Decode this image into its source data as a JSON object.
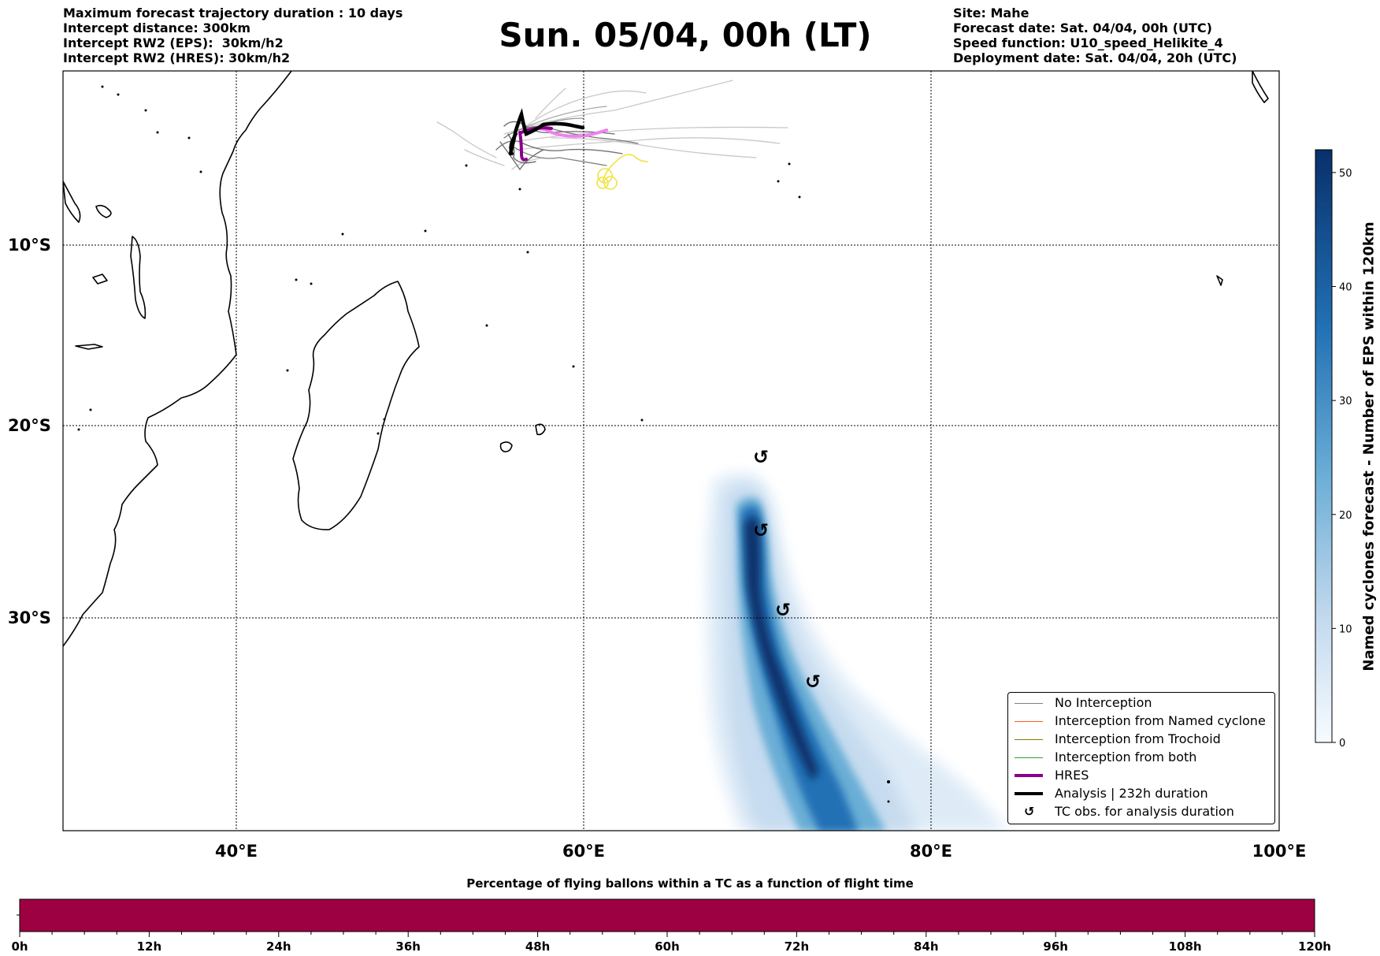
{
  "header_left": [
    "Maximum forecast trajectory duration : 10 days",
    "Intercept distance: 300km",
    "Intercept RW2 (EPS):  30km/h2",
    "Intercept RW2 (HRES): 30km/h2"
  ],
  "header_right": [
    "Site: Mahe",
    "Forecast date: Sat. 04/04, 00h (UTC)",
    "Speed function: U10_speed_Helikite_4",
    "Deployment date: Sat. 04/04, 20h (UTC)"
  ],
  "title": "Sun. 05/04, 00h (LT)",
  "map": {
    "lon_ticks": [
      "40°E",
      "60°E",
      "80°E",
      "100°E"
    ],
    "lat_ticks": [
      "10°S",
      "20°S",
      "30°S"
    ]
  },
  "colorbar": {
    "label": "Named cyclones forecast - Number of EPS within 120km",
    "ticks": [
      "0",
      "10",
      "20",
      "30",
      "40",
      "50"
    ],
    "min": 0,
    "max": 52
  },
  "legend": [
    {
      "label": "No Interception",
      "color": "#808080"
    },
    {
      "label": "Interception from Named cyclone",
      "color": "#ff5a1f"
    },
    {
      "label": "Interception from Trochoid",
      "color": "#808000"
    },
    {
      "label": "Interception from both",
      "color": "#2ca02c"
    },
    {
      "label": "HRES",
      "color": "#8b008b"
    },
    {
      "label": "Analysis | 232h duration",
      "color": "#000000"
    },
    {
      "label": "TC obs. for analysis duration",
      "icon": "cyclone-icon"
    }
  ],
  "bottom_bar": {
    "title": "Percentage of flying ballons within a TC as a function of flight time",
    "ticks": [
      "0h",
      "12h",
      "24h",
      "36h",
      "48h",
      "60h",
      "72h",
      "84h",
      "96h",
      "108h",
      "120h"
    ],
    "color": "#9e0142"
  },
  "cyclone_symbol": "↺"
}
